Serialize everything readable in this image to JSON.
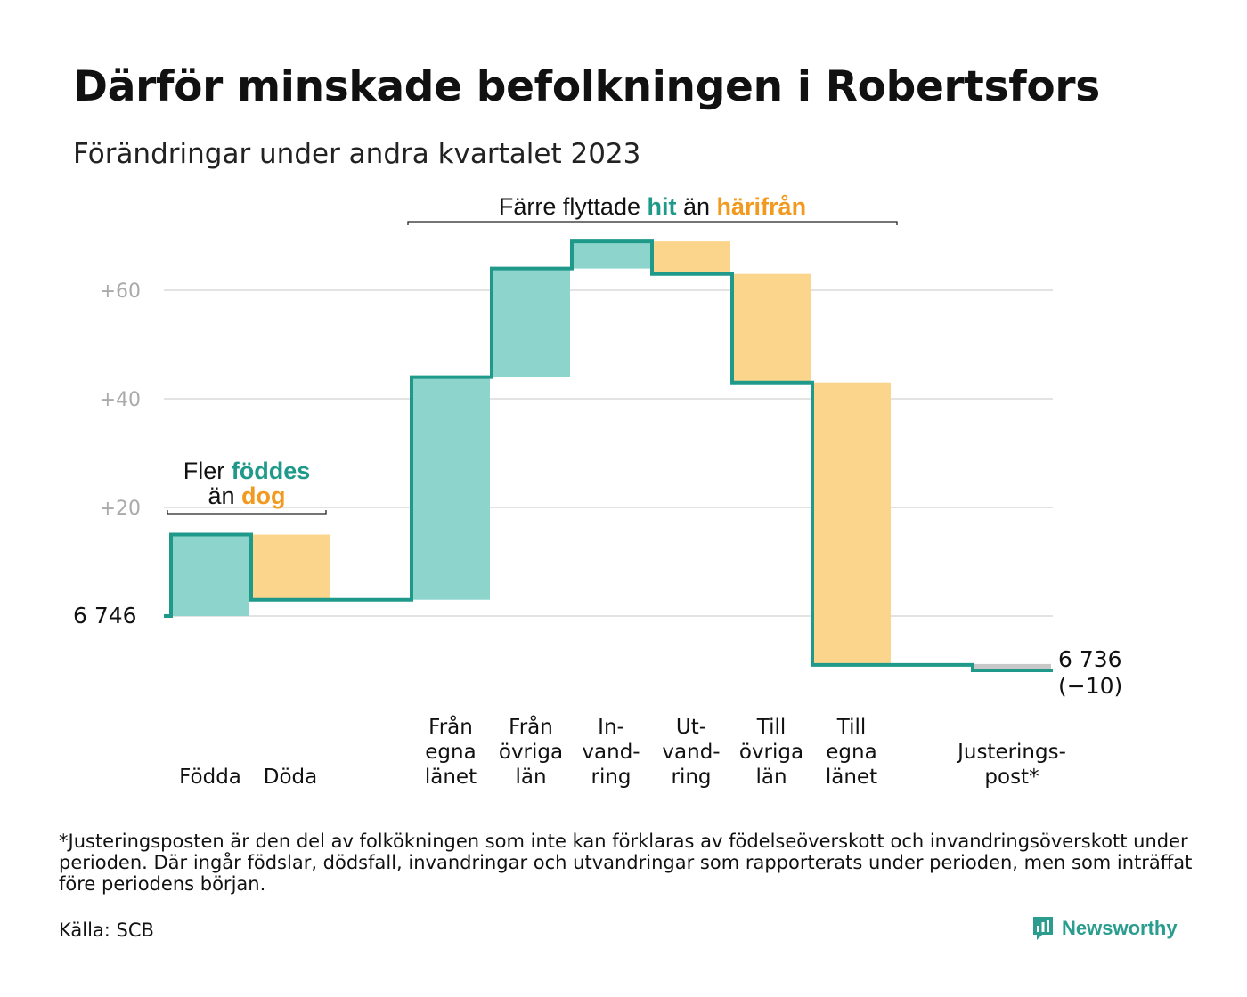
{
  "title": "Därför minskade befolkningen i Robertsfors",
  "subtitle": "Förändringar under andra kvartalet 2023",
  "colors": {
    "increase": "#8dd4cc",
    "decrease": "#fbd58c",
    "adjustment": "#c8c8c8",
    "line": "#1f9a8a",
    "text_green": "#1f9a8a",
    "text_orange": "#f29a1f",
    "grid": "#e3e3e3",
    "tick": "#aaaaaa"
  },
  "chart_data": {
    "type": "waterfall",
    "start": {
      "label": "6  746",
      "value": 6746
    },
    "end": {
      "value_label": "6 736",
      "change_label": "(−10)",
      "value": 6736,
      "change": -10
    },
    "y_ticks": [
      {
        "offset": 20,
        "label": "+20"
      },
      {
        "offset": 40,
        "label": "+40"
      },
      {
        "offset": 60,
        "label": "+60"
      }
    ],
    "steps": [
      {
        "label_lines": [
          "Födda"
        ],
        "delta": 15,
        "kind": "increase"
      },
      {
        "label_lines": [
          "Döda"
        ],
        "delta": -12,
        "kind": "decrease"
      },
      {
        "label_lines": [
          "Från",
          "egna",
          "länet"
        ],
        "delta": 41,
        "kind": "increase"
      },
      {
        "label_lines": [
          "Från",
          "övriga",
          "län"
        ],
        "delta": 20,
        "kind": "increase"
      },
      {
        "label_lines": [
          "In-",
          "vand-",
          "ring"
        ],
        "delta": 5,
        "kind": "increase"
      },
      {
        "label_lines": [
          "Ut-",
          "vand-",
          "ring"
        ],
        "delta": -6,
        "kind": "decrease"
      },
      {
        "label_lines": [
          "Till",
          "övriga",
          "län"
        ],
        "delta": -20,
        "kind": "decrease"
      },
      {
        "label_lines": [
          "Till",
          "egna",
          "länet"
        ],
        "delta": -52,
        "kind": "decrease"
      },
      {
        "label_lines": [
          "Justerings-",
          "post*"
        ],
        "delta": -1,
        "kind": "adjustment"
      }
    ],
    "annotations": {
      "births": {
        "line1_prefix": "Fler ",
        "line1_highlight": "föddes",
        "line2_prefix": "än ",
        "line2_highlight": "dog"
      },
      "moves": {
        "prefix": "Färre flyttade ",
        "highlight1": "hit",
        "middle": " än ",
        "highlight2": "härifrån"
      }
    }
  },
  "footnote": "*Justeringsposten är den del av folkökningen som inte kan förklaras av födelseöverskott och invandringsöverskott under perioden. Där ingår födslar, dödsfall, invandringar och utvandringar som rapporterats under perioden, men som inträffat före periodens början.",
  "source": "Källa: SCB",
  "brand": {
    "name": "Newsworthy",
    "icon": "newsworthy-logo-icon"
  }
}
